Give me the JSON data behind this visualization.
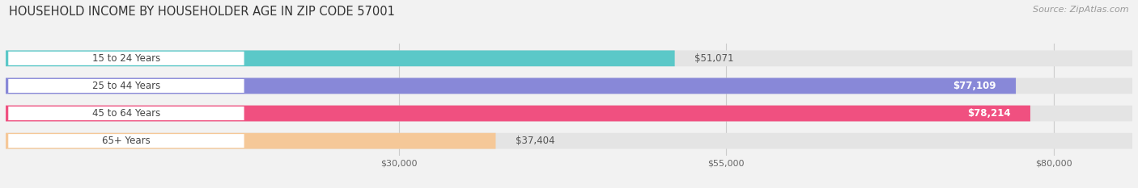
{
  "title": "HOUSEHOLD INCOME BY HOUSEHOLDER AGE IN ZIP CODE 57001",
  "source": "Source: ZipAtlas.com",
  "categories": [
    "15 to 24 Years",
    "25 to 44 Years",
    "45 to 64 Years",
    "65+ Years"
  ],
  "values": [
    51071,
    77109,
    78214,
    37404
  ],
  "bar_colors": [
    "#5bc8c8",
    "#8888d8",
    "#f05080",
    "#f5c898"
  ],
  "value_labels": [
    "$51,071",
    "$77,109",
    "$78,214",
    "$37,404"
  ],
  "value_inside": [
    false,
    true,
    true,
    false
  ],
  "xticks": [
    30000,
    55000,
    80000
  ],
  "xtick_labels": [
    "$30,000",
    "$55,000",
    "$80,000"
  ],
  "xmin": 0,
  "xmax": 86000,
  "background_color": "#f2f2f2",
  "bar_background_color": "#e4e4e4",
  "label_bg_color": "#ffffff",
  "title_fontsize": 10.5,
  "source_fontsize": 8,
  "cat_fontsize": 8.5,
  "value_fontsize": 8.5,
  "tick_fontsize": 8
}
